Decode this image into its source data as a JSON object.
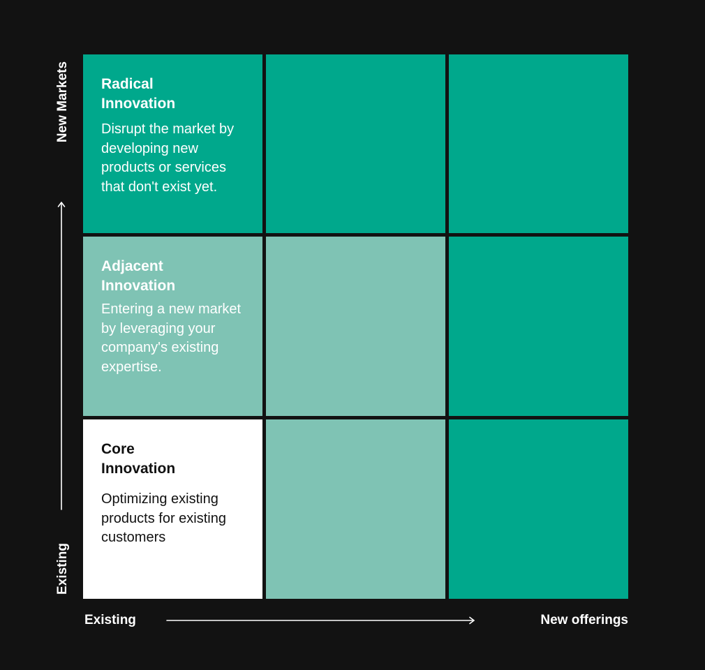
{
  "axes": {
    "y_top_label": "New Markets",
    "y_bottom_label": "Existing",
    "x_left_label": "Existing",
    "x_right_label": "New offerings"
  },
  "cells": {
    "radical": {
      "title_line1": "Radical",
      "title_line2": "Innovation",
      "description": "Disrupt the market by developing new products or services that don't exist yet."
    },
    "adjacent": {
      "title_line1": "Adjacent",
      "title_line2": "Innovation",
      "description": "Entering a new market by leveraging your company's existing expertise."
    },
    "core": {
      "title_line1": "Core",
      "title_line2": "Innovation",
      "description": "Optimizing existing products for existing customers"
    }
  },
  "colors": {
    "background": "#121212",
    "dark_teal": "#00a88c",
    "light_teal": "#7fc3b4",
    "white": "#ffffff"
  }
}
